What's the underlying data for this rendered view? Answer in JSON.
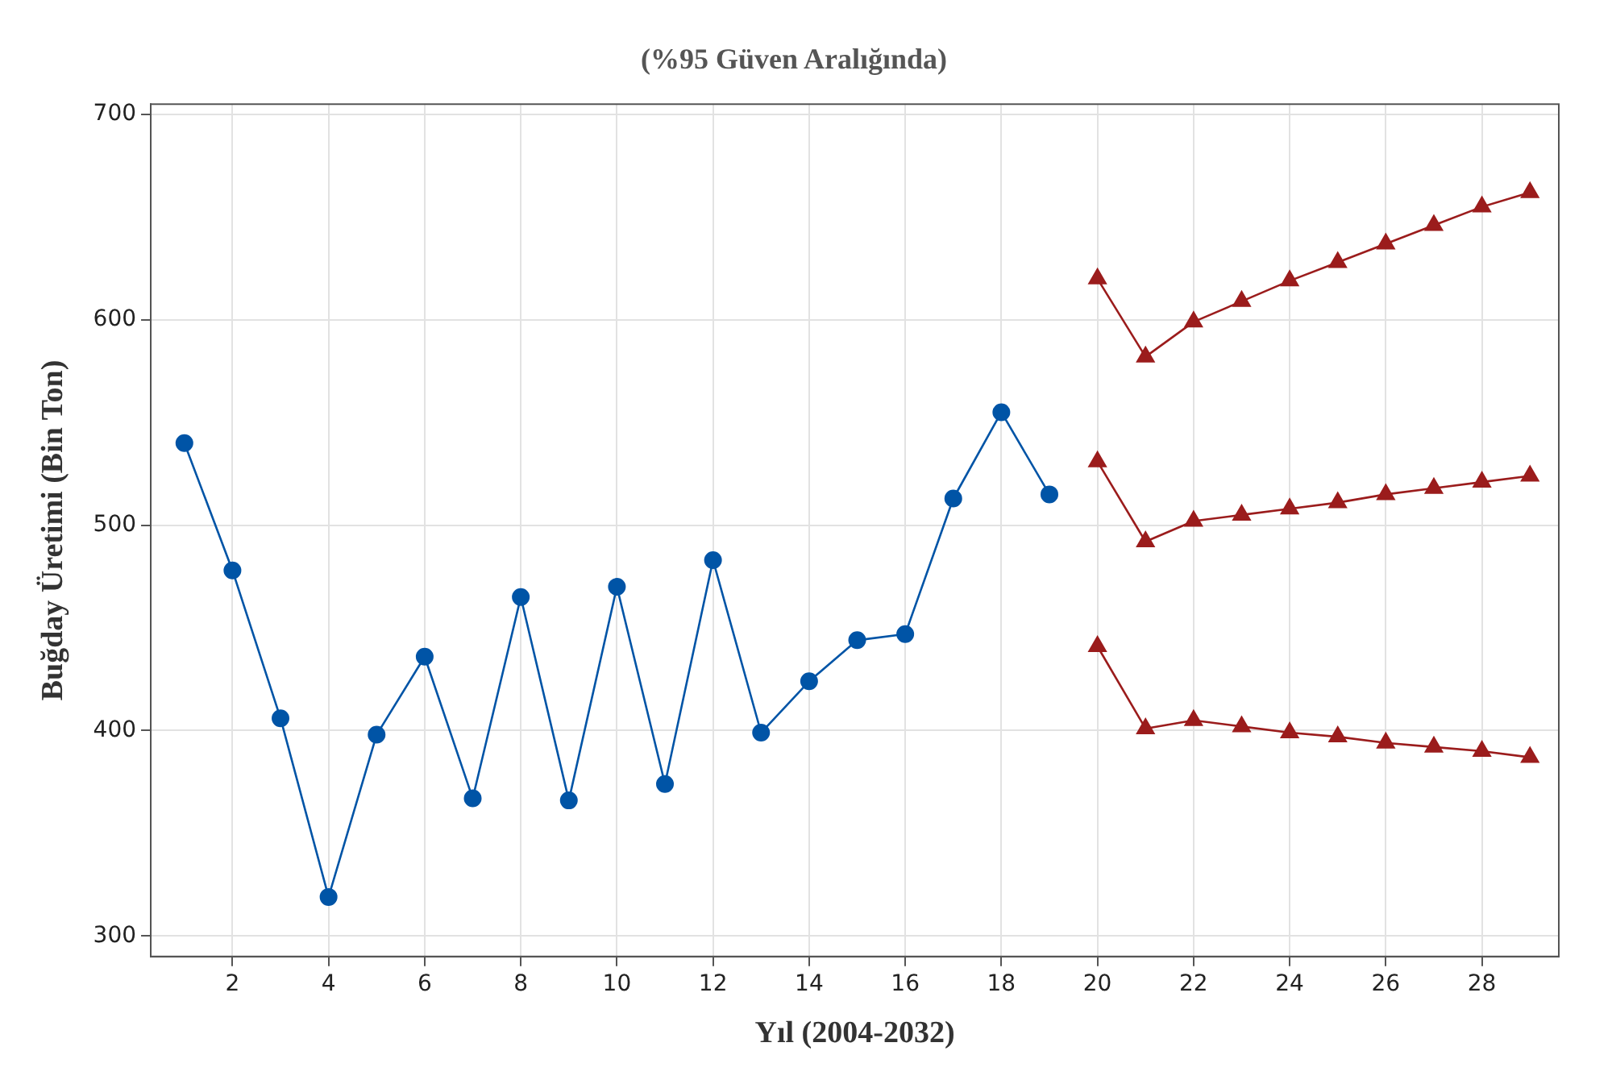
{
  "chart_data": {
    "type": "line",
    "title": "(%95 Güven Aralığında)",
    "xlabel": "Yıl (2004-2032)",
    "ylabel": "Buğday Üretimi (Bin Ton)",
    "xlim": [
      0.3,
      29.6
    ],
    "xticks": [
      2,
      4,
      6,
      8,
      10,
      12,
      14,
      16,
      18,
      20,
      22,
      24,
      26,
      28
    ],
    "ylim": [
      290,
      705
    ],
    "yticks": [
      300,
      400,
      500,
      600,
      700
    ],
    "grid": true,
    "legend": false,
    "series": [
      {
        "color": "#0054a6",
        "marker": "circle",
        "x": [
          1,
          2,
          3,
          4,
          5,
          6,
          7,
          8,
          9,
          10,
          11,
          12,
          13,
          14,
          15,
          16,
          17,
          18,
          19
        ],
        "values": [
          540,
          478,
          406,
          319,
          398,
          436,
          367,
          465,
          366,
          470,
          374,
          483,
          399,
          424,
          444,
          447,
          513,
          555,
          515
        ]
      },
      {
        "color": "#9b1c1c",
        "marker": "triangle",
        "x": [
          20,
          21,
          22,
          23,
          24,
          25,
          26,
          27,
          28,
          29
        ],
        "values": [
          620,
          582,
          599,
          609,
          619,
          628,
          637,
          646,
          655,
          662
        ]
      },
      {
        "color": "#9b1c1c",
        "marker": "triangle",
        "x": [
          20,
          21,
          22,
          23,
          24,
          25,
          26,
          27,
          28,
          29
        ],
        "values": [
          531,
          492,
          502,
          505,
          508,
          511,
          515,
          518,
          521,
          524
        ]
      },
      {
        "color": "#9b1c1c",
        "marker": "triangle",
        "x": [
          20,
          21,
          22,
          23,
          24,
          25,
          26,
          27,
          28,
          29
        ],
        "values": [
          441,
          401,
          405,
          402,
          399,
          397,
          394,
          392,
          390,
          387
        ]
      }
    ]
  }
}
